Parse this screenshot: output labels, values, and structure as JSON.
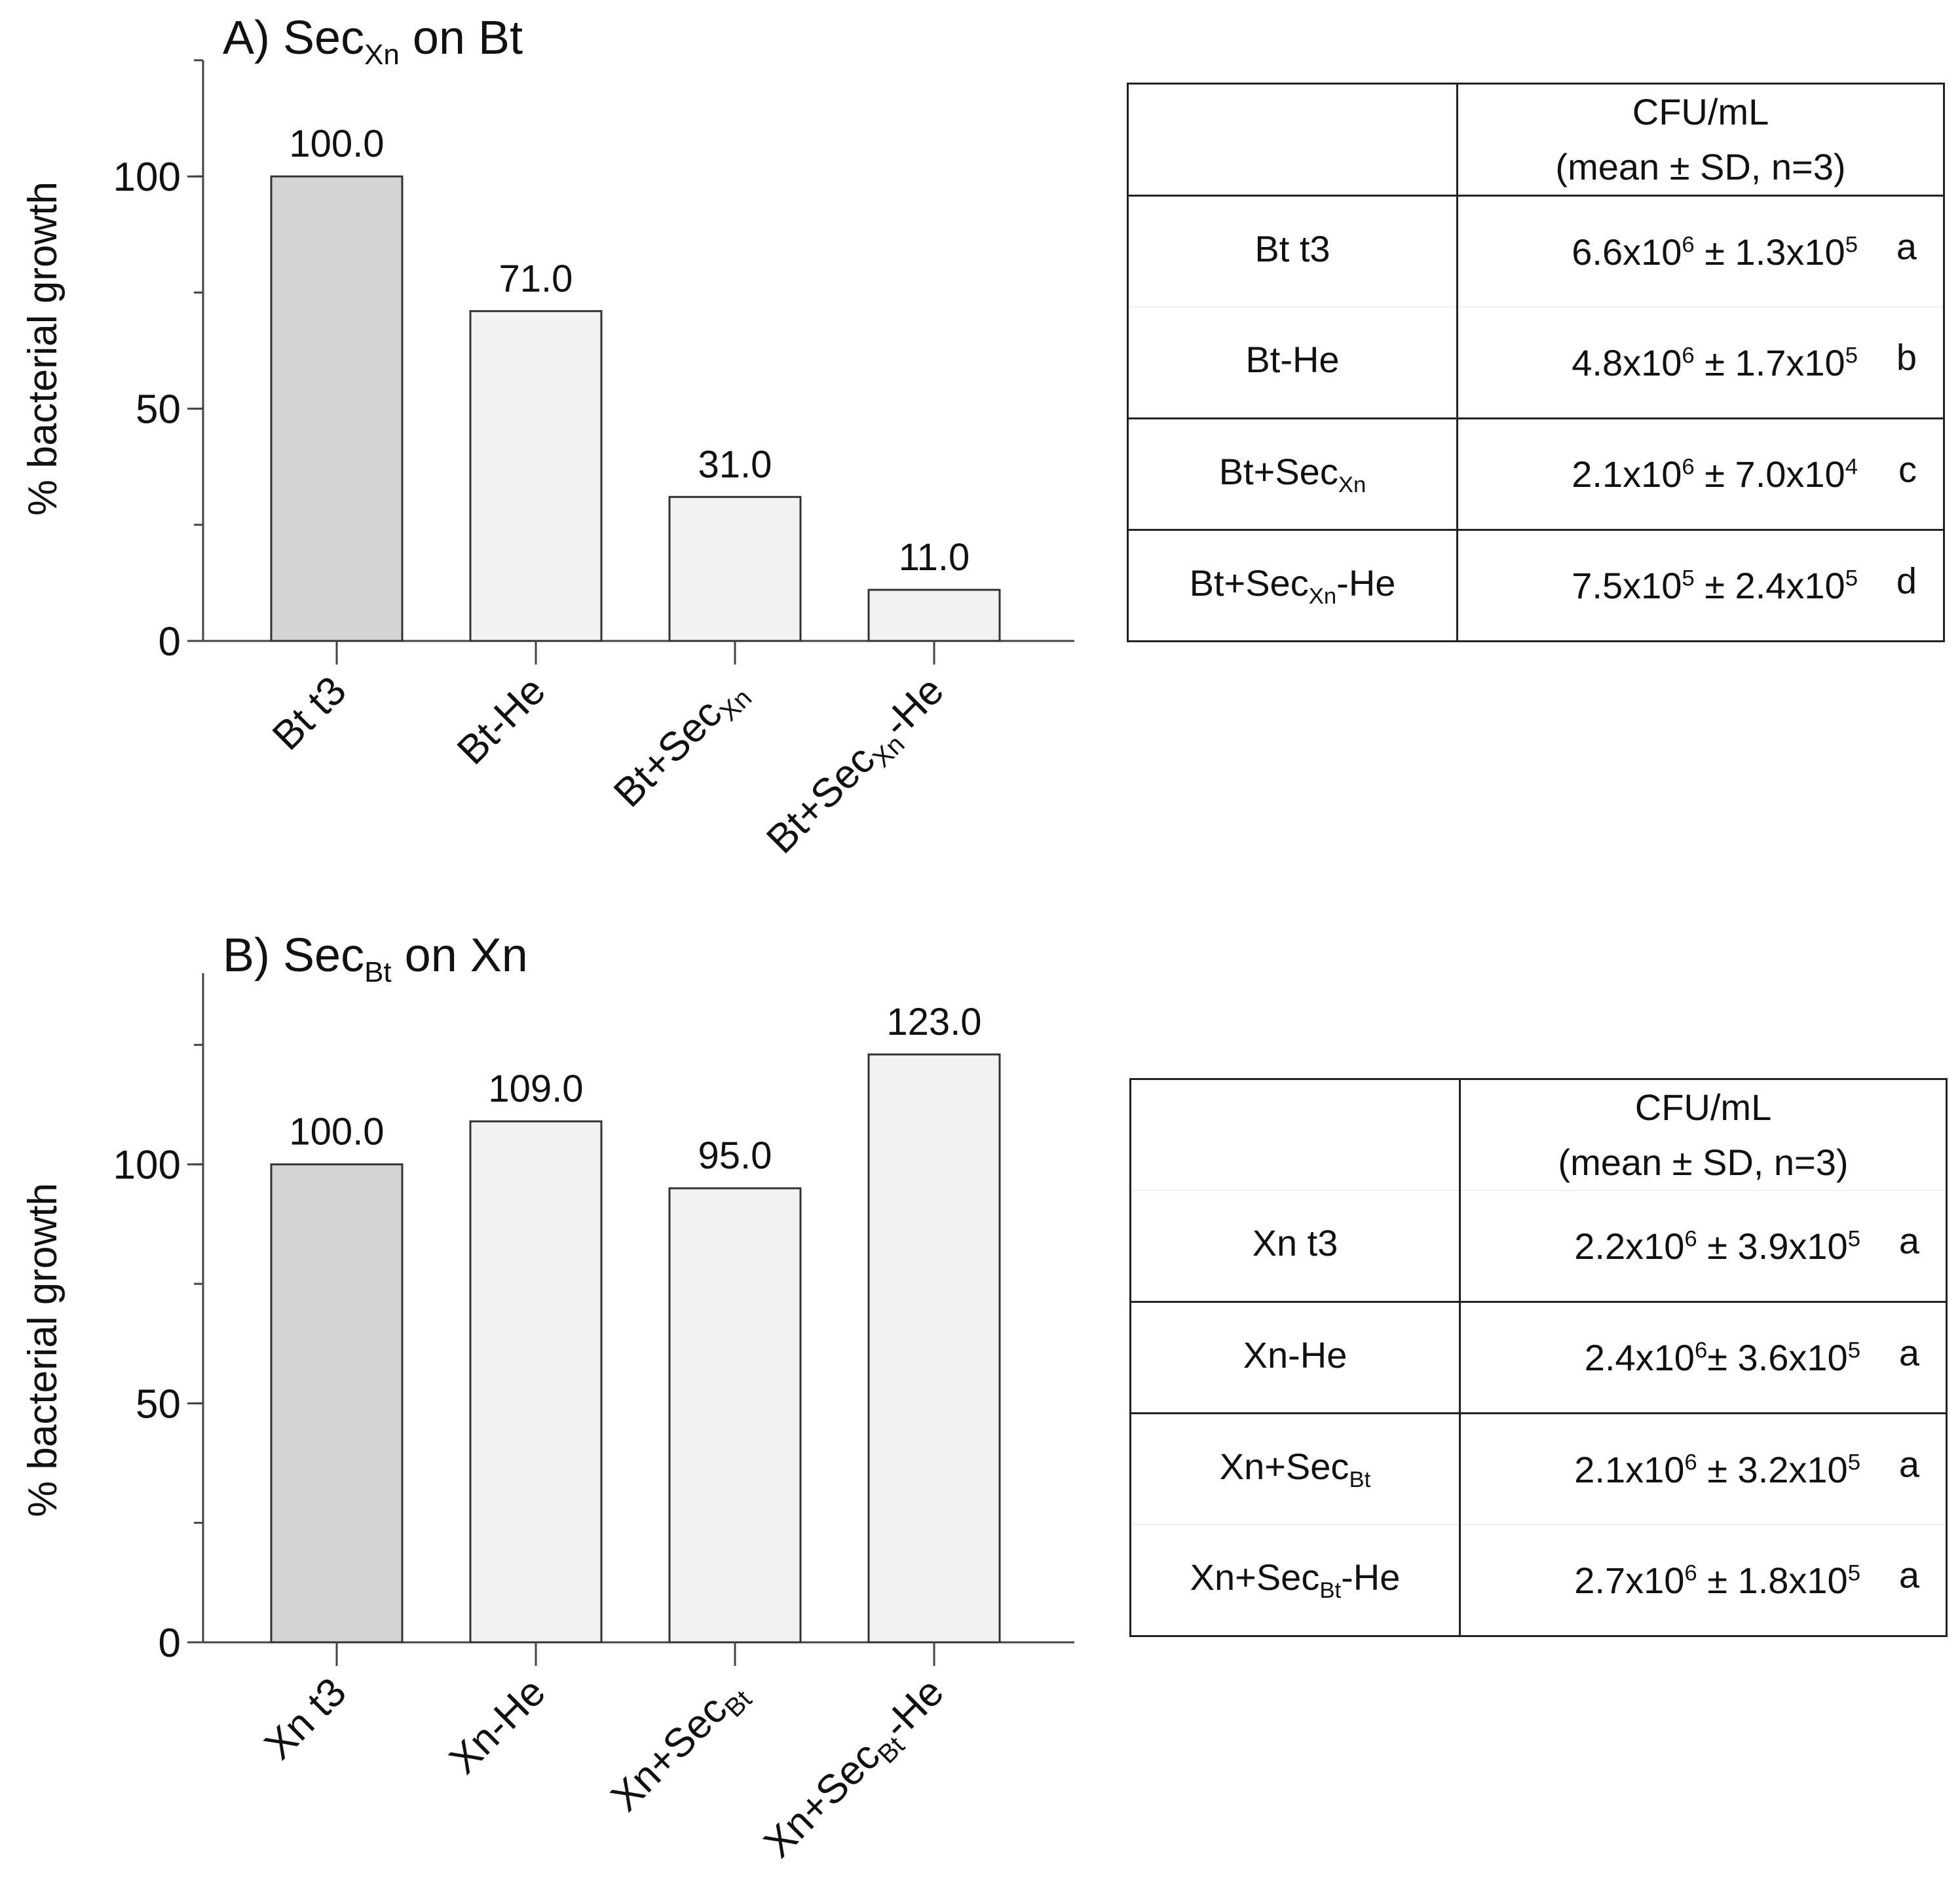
{
  "chart_data": [
    {
      "type": "bar",
      "panel": "A",
      "title": "A) Sec",
      "title_sub": "Xn",
      "title_tail": " on Bt",
      "ylabel": "% bacterial growth",
      "xlabel": "",
      "ylim": [
        0,
        125
      ],
      "yticks": [
        0,
        50,
        100
      ],
      "categories": [
        {
          "base": "Bt t3",
          "sub": "",
          "tail": ""
        },
        {
          "base": "Bt-He",
          "sub": "",
          "tail": ""
        },
        {
          "base": "Bt+Sec",
          "sub": "Xn",
          "tail": ""
        },
        {
          "base": "Bt+Sec",
          "sub": "Xn",
          "tail": "-He"
        }
      ],
      "values": [
        100.0,
        71.0,
        31.0,
        11.0
      ],
      "value_labels": [
        "100.0",
        "71.0",
        "31.0",
        "11.0"
      ],
      "bar_colors": [
        "#d4d4d4",
        "#f2f2f2",
        "#f2f2f2",
        "#f2f2f2"
      ]
    },
    {
      "type": "bar",
      "panel": "B",
      "title": "B) Sec",
      "title_sub": "Bt",
      "title_tail": " on Xn",
      "ylabel": "% bacterial growth",
      "xlabel": "",
      "ylim": [
        0,
        140
      ],
      "yticks": [
        0,
        50,
        100
      ],
      "categories": [
        {
          "base": "Xn t3",
          "sub": "",
          "tail": ""
        },
        {
          "base": "Xn-He",
          "sub": "",
          "tail": ""
        },
        {
          "base": "Xn+Sec",
          "sub": "Bt",
          "tail": ""
        },
        {
          "base": "Xn+Sec",
          "sub": "Bt",
          "tail": "-He"
        }
      ],
      "values": [
        100.0,
        109.0,
        95.0,
        123.0
      ],
      "value_labels": [
        "100.0",
        "109.0",
        "95.0",
        "123.0"
      ],
      "bar_colors": [
        "#d4d4d4",
        "#f2f2f2",
        "#f2f2f2",
        "#f2f2f2"
      ]
    }
  ],
  "tables": {
    "a": {
      "header_line1": "CFU/mL",
      "header_line2": "(mean ± SD, n=3)",
      "rows": [
        {
          "label": "Bt t3",
          "label_sub": "",
          "label_tail": "",
          "mean_base": "6.6x10",
          "mean_exp": "6",
          "pm": " ± ",
          "sd_base": "1.3x10",
          "sd_exp": "5",
          "group": "a"
        },
        {
          "label": "Bt-He",
          "label_sub": "",
          "label_tail": "",
          "mean_base": "4.8x10",
          "mean_exp": "6",
          "pm": " ± ",
          "sd_base": "1.7x10",
          "sd_exp": "5",
          "group": "b"
        },
        {
          "label": "Bt+Sec",
          "label_sub": "Xn",
          "label_tail": "",
          "mean_base": "2.1x10",
          "mean_exp": "6",
          "pm": " ± ",
          "sd_base": "7.0x10",
          "sd_exp": "4",
          "group": "c"
        },
        {
          "label": "Bt+Sec",
          "label_sub": "Xn",
          "label_tail": "-He",
          "mean_base": "7.5x10",
          "mean_exp": "5",
          "pm": " ± ",
          "sd_base": "2.4x10",
          "sd_exp": "5",
          "group": "d"
        }
      ]
    },
    "b": {
      "header_line1": "CFU/mL",
      "header_line2": "(mean ± SD, n=3)",
      "rows": [
        {
          "label": "Xn t3",
          "label_sub": "",
          "label_tail": "",
          "mean_base": "2.2x10",
          "mean_exp": "6",
          "pm": " ± ",
          "sd_base": "3.9x10",
          "sd_exp": "5",
          "group": "a"
        },
        {
          "label": "Xn-He",
          "label_sub": "",
          "label_tail": "",
          "mean_base": "2.4x10",
          "mean_exp": "6",
          "pm": "± ",
          "sd_base": "3.6x10",
          "sd_exp": "5",
          "group": "a"
        },
        {
          "label": "Xn+Sec",
          "label_sub": "Bt",
          "label_tail": "",
          "mean_base": "2.1x10",
          "mean_exp": "6",
          "pm": " ± ",
          "sd_base": "3.2x10",
          "sd_exp": "5",
          "group": "a"
        },
        {
          "label": "Xn+Sec",
          "label_sub": "Bt",
          "label_tail": "-He",
          "mean_base": "2.7x10",
          "mean_exp": "6",
          "pm": " ± ",
          "sd_base": "1.8x10",
          "sd_exp": "5",
          "group": "a"
        }
      ]
    }
  }
}
